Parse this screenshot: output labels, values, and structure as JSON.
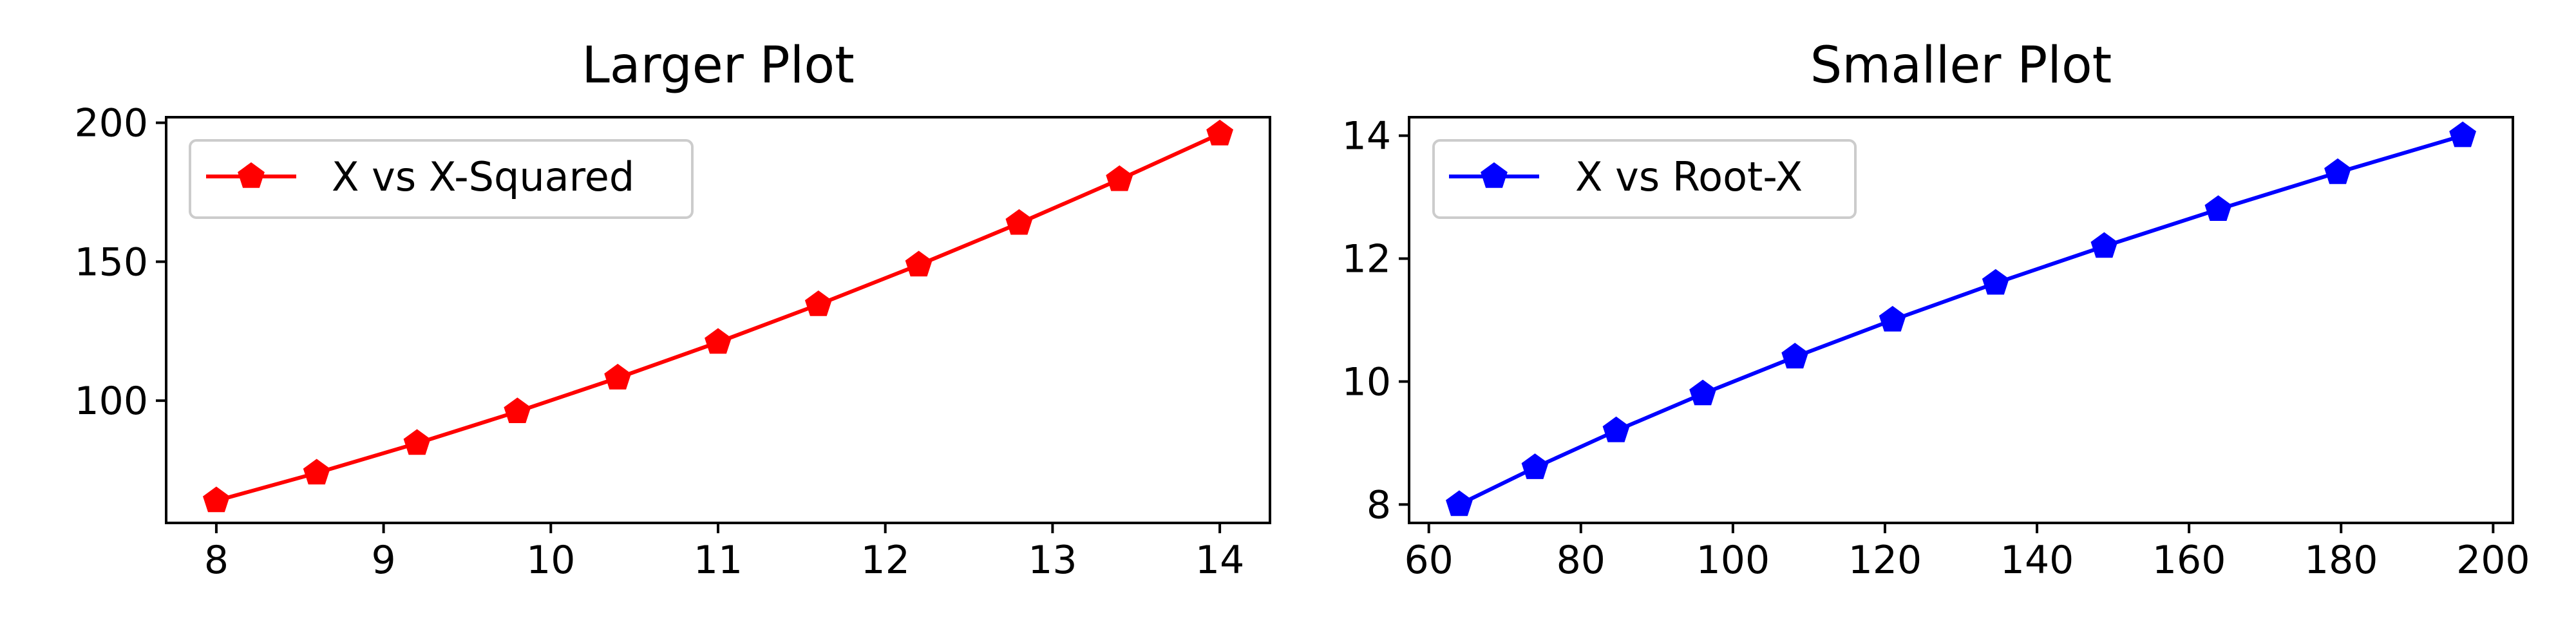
{
  "chart_data": [
    {
      "type": "line",
      "title": "Larger Plot",
      "xlabel": "",
      "ylabel": "",
      "xlim": [
        7.7,
        14.3
      ],
      "ylim": [
        56.0,
        202.0
      ],
      "x_ticks": [
        8,
        9,
        10,
        11,
        12,
        13,
        14
      ],
      "y_ticks": [
        100,
        150,
        200
      ],
      "grid": false,
      "legend_position": "upper-left",
      "series": [
        {
          "name": "X vs X-Squared",
          "color": "#ff0000",
          "marker": "pentagon",
          "x": [
            8.0,
            8.6,
            9.2,
            9.8,
            10.4,
            11.0,
            11.6,
            12.2,
            12.8,
            13.4,
            14.0
          ],
          "y": [
            64.0,
            73.96,
            84.64,
            96.04,
            108.16,
            121.0,
            134.56,
            148.84,
            163.84,
            179.56,
            196.0
          ]
        }
      ]
    },
    {
      "type": "line",
      "title": "Smaller Plot",
      "xlabel": "",
      "ylabel": "",
      "xlim": [
        57.4,
        202.6
      ],
      "ylim": [
        7.7,
        14.3
      ],
      "x_ticks": [
        60,
        80,
        100,
        120,
        140,
        160,
        180,
        200
      ],
      "y_ticks": [
        8,
        10,
        12,
        14
      ],
      "grid": false,
      "legend_position": "upper-left",
      "series": [
        {
          "name": "X vs Root-X",
          "color": "#0000ff",
          "marker": "pentagon",
          "x": [
            64.0,
            73.96,
            84.64,
            96.04,
            108.16,
            121.0,
            134.56,
            148.84,
            163.84,
            179.56,
            196.0
          ],
          "y": [
            8.0,
            8.6,
            9.2,
            9.8,
            10.4,
            11.0,
            11.6,
            12.2,
            12.8,
            13.4,
            14.0
          ]
        }
      ]
    }
  ]
}
